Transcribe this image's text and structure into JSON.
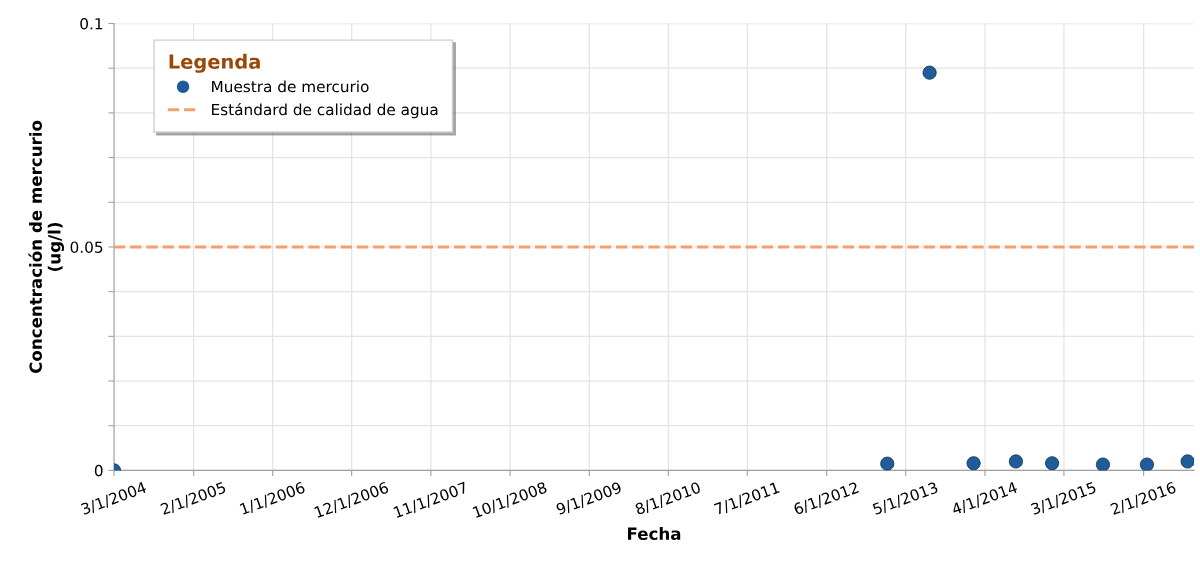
{
  "chart_data": {
    "type": "scatter",
    "xlabel": "Fecha",
    "ylabel": "Concentración de mercurio\n(ug/l)",
    "legend_title": "Legenda",
    "series": [
      {
        "name": "Muestra de mercurio",
        "color": "#1f5c99",
        "x": [
          "2004-03-01",
          "2013-02-12",
          "2013-08-10",
          "2014-02-12",
          "2014-08-10",
          "2015-01-10",
          "2015-08-13",
          "2016-02-15",
          "2016-08-05"
        ],
        "values": [
          0,
          0.0015,
          0.089,
          0.0016,
          0.002,
          0.0016,
          0.0013,
          0.0013,
          0.002
        ]
      }
    ],
    "ref_lines": [
      {
        "axis": "y",
        "value": 0.05,
        "label": "Estándard de calidad de agua",
        "color": "#f0a070",
        "line_style": "dashed"
      }
    ],
    "xlim": [
      "2004-03-01",
      "2016-09-01"
    ],
    "xticks": [
      {
        "value": "2004-03-01",
        "label": "3/1/2004"
      },
      {
        "value": "2005-02-01",
        "label": "2/1/2005"
      },
      {
        "value": "2006-01-01",
        "label": "1/1/2006"
      },
      {
        "value": "2006-12-01",
        "label": "12/1/2006"
      },
      {
        "value": "2007-11-01",
        "label": "11/1/2007"
      },
      {
        "value": "2008-10-01",
        "label": "10/1/2008"
      },
      {
        "value": "2009-09-01",
        "label": "9/1/2009"
      },
      {
        "value": "2010-08-01",
        "label": "8/1/2010"
      },
      {
        "value": "2011-07-01",
        "label": "7/1/2011"
      },
      {
        "value": "2012-06-01",
        "label": "6/1/2012"
      },
      {
        "value": "2013-05-01",
        "label": "5/1/2013"
      },
      {
        "value": "2014-04-01",
        "label": "4/1/2014"
      },
      {
        "value": "2015-03-01",
        "label": "3/1/2015"
      },
      {
        "value": "2016-02-01",
        "label": "2/1/2016"
      }
    ],
    "ylim": [
      0,
      0.1
    ],
    "yticks": [
      0,
      {
        "value": 0.01,
        "label": null
      },
      {
        "value": 0.02,
        "label": null
      },
      {
        "value": 0.03,
        "label": null
      },
      {
        "value": 0.04,
        "label": null
      },
      0.05,
      {
        "value": 0.06,
        "label": null
      },
      {
        "value": 0.07,
        "label": null
      },
      {
        "value": 0.08,
        "label": null
      },
      {
        "value": 0.09,
        "label": null
      },
      0.1
    ],
    "grid": true,
    "legend": "top left",
    "marker": "circle"
  }
}
